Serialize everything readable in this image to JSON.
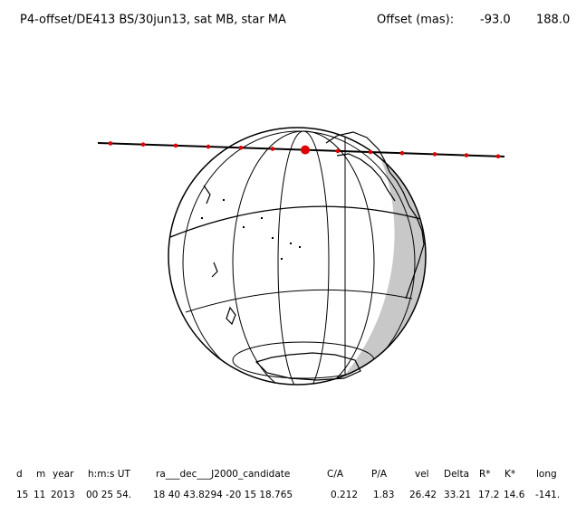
{
  "header": {
    "title": "P4-offset/DE413 BS/30jun13, sat MB, star MA",
    "offset_label": "Offset (mas):",
    "offset_values": [
      "-93.0",
      "188.0"
    ]
  },
  "table": {
    "columns": [
      "d",
      "m",
      "year",
      "h:m:s UT",
      "ra___dec___J2000_candidate",
      "C/A",
      "P/A",
      "vel",
      "Delta",
      "R*",
      "K*",
      "long"
    ],
    "rows": [
      [
        "15",
        "11",
        "2013",
        "00 25 54.",
        "18 40 43.8294 -20 15 18.765",
        "0.212",
        "1.83",
        "26.42",
        "33.21",
        "17.2",
        "14.6",
        "-141."
      ]
    ]
  }
}
